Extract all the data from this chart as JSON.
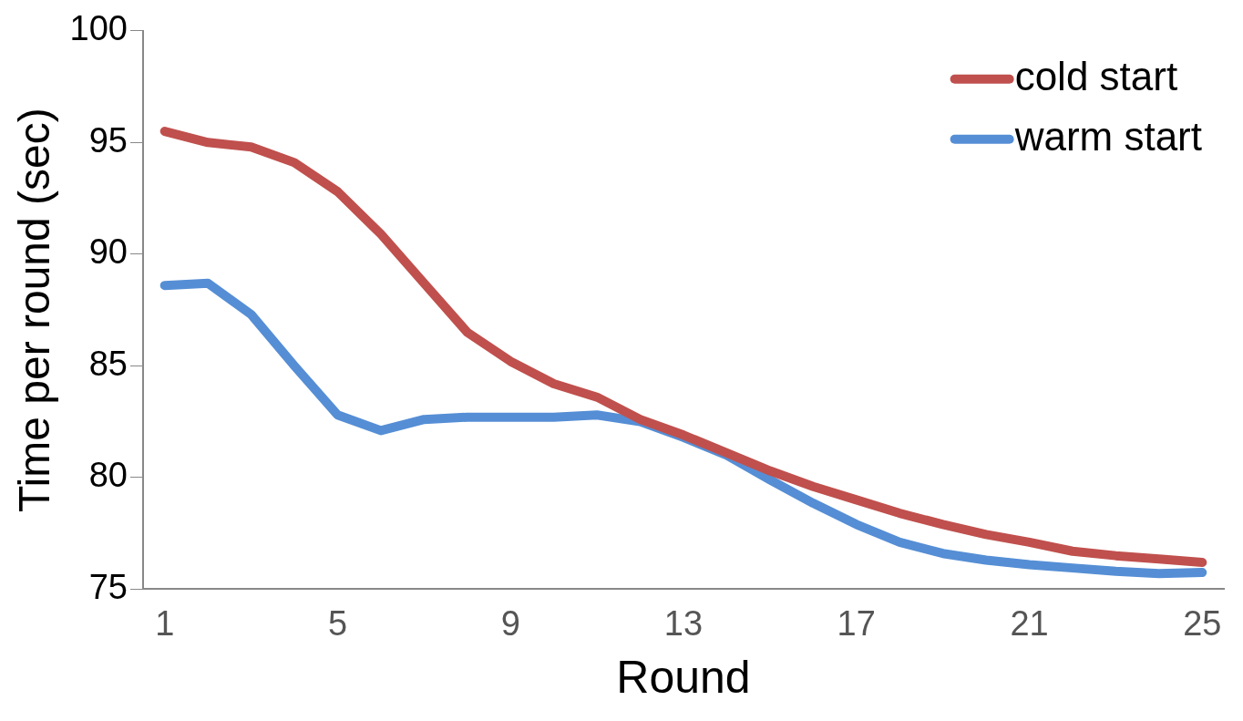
{
  "chart_data": {
    "type": "line",
    "xlabel": "Round",
    "ylabel": "Time per round (sec)",
    "categories": [
      "1",
      null,
      null,
      null,
      "5",
      null,
      null,
      null,
      "9",
      null,
      null,
      null,
      "13",
      null,
      null,
      null,
      "17",
      null,
      null,
      null,
      "21",
      null,
      null,
      null,
      "25"
    ],
    "series": [
      {
        "name": "cold start",
        "color": "#c0504d",
        "values": [
          95.5,
          95.0,
          94.8,
          94.1,
          92.8,
          90.9,
          88.7,
          86.5,
          85.2,
          84.2,
          83.6,
          82.6,
          81.9,
          81.1,
          80.3,
          79.6,
          79.0,
          78.4,
          77.9,
          77.45,
          77.1,
          76.7,
          76.5,
          76.35,
          76.2
        ]
      },
      {
        "name": "warm start",
        "color": "#558ed5",
        "values": [
          88.6,
          88.7,
          87.3,
          85.0,
          82.8,
          82.1,
          82.6,
          82.7,
          82.7,
          82.7,
          82.8,
          82.5,
          81.8,
          81.0,
          79.9,
          78.85,
          77.9,
          77.1,
          76.6,
          76.3,
          76.1,
          75.95,
          75.8,
          75.7,
          75.75
        ]
      }
    ],
    "ylim": [
      75,
      100
    ],
    "yticks": [
      75,
      80,
      85,
      90,
      95,
      100
    ],
    "grid": false,
    "legend": "top right",
    "marker": "none",
    "line_style": "solid"
  }
}
